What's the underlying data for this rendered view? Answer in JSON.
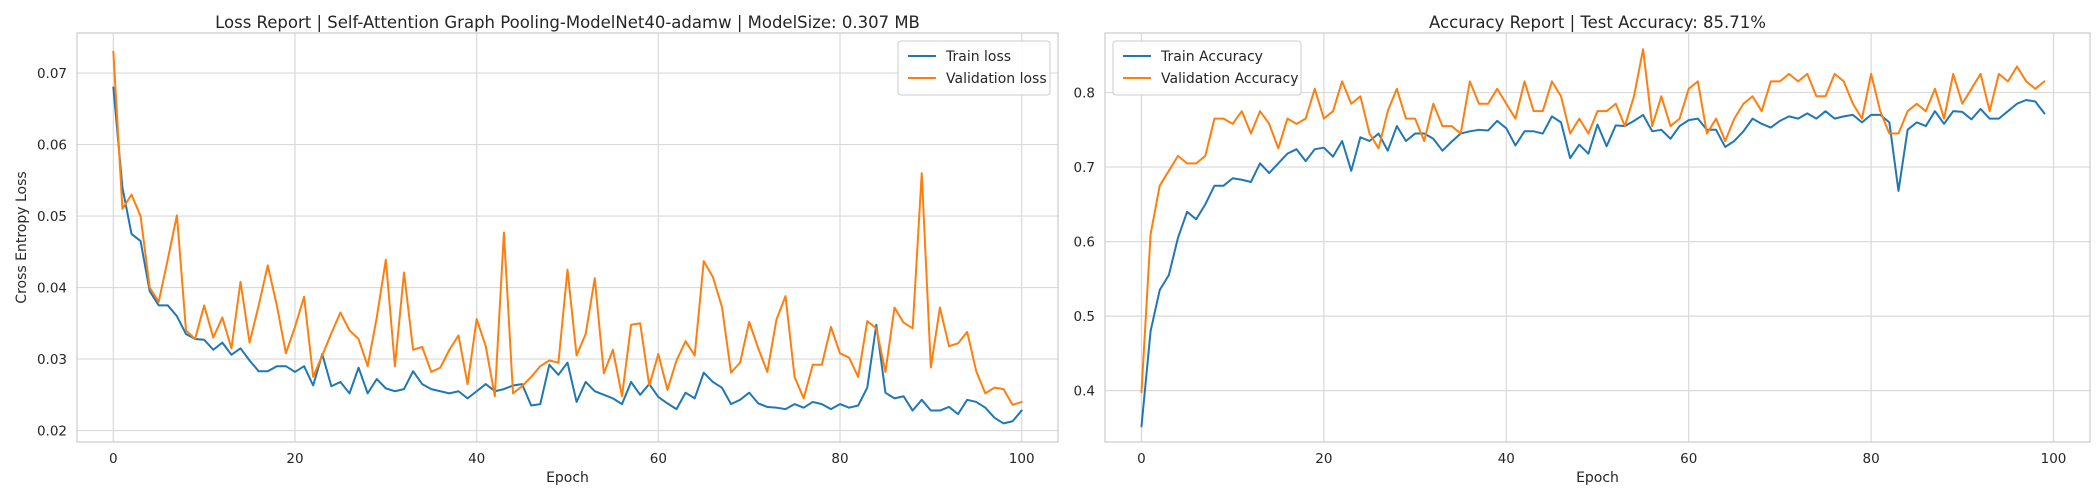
{
  "chart_data": [
    {
      "type": "line",
      "title": "Loss Report | Self-Attention Graph Pooling-ModelNet40-adamw | ModelSize: 0.307 MB",
      "xlabel": "Epoch",
      "ylabel": "Cross Entropy Loss",
      "xlim": [
        -4,
        104
      ],
      "ylim": [
        0.0184,
        0.0756
      ],
      "xticks": [
        0,
        20,
        40,
        60,
        80,
        100
      ],
      "yticks": [
        0.02,
        0.03,
        0.04,
        0.05,
        0.06,
        0.07
      ],
      "ytick_decimals": 2,
      "grid": true,
      "legend_position": "top-right",
      "series": [
        {
          "name": "Train loss",
          "color": "#1f77b4",
          "values": [
            0.068,
            0.054,
            0.0475,
            0.0465,
            0.0395,
            0.0375,
            0.0375,
            0.036,
            0.0335,
            0.0328,
            0.0327,
            0.0313,
            0.0323,
            0.0306,
            0.0315,
            0.0298,
            0.0283,
            0.0283,
            0.029,
            0.029,
            0.0282,
            0.029,
            0.0263,
            0.0307,
            0.0262,
            0.0268,
            0.0252,
            0.0288,
            0.0252,
            0.0272,
            0.0259,
            0.0255,
            0.0258,
            0.0283,
            0.0265,
            0.0258,
            0.0255,
            0.0252,
            0.0255,
            0.0245,
            0.0255,
            0.0265,
            0.0255,
            0.0258,
            0.0263,
            0.0265,
            0.0235,
            0.0237,
            0.0292,
            0.0278,
            0.0295,
            0.024,
            0.0268,
            0.0255,
            0.025,
            0.0245,
            0.0237,
            0.0268,
            0.025,
            0.0265,
            0.0247,
            0.0238,
            0.023,
            0.0253,
            0.0245,
            0.0281,
            0.0268,
            0.026,
            0.0237,
            0.0243,
            0.0253,
            0.0238,
            0.0233,
            0.0232,
            0.023,
            0.0237,
            0.0232,
            0.024,
            0.0237,
            0.023,
            0.0237,
            0.0232,
            0.0235,
            0.026,
            0.0348,
            0.0253,
            0.0245,
            0.0248,
            0.0228,
            0.0243,
            0.0228,
            0.0228,
            0.0233,
            0.0223,
            0.0243,
            0.024,
            0.0232,
            0.0218,
            0.021,
            0.0213,
            0.0228
          ]
        },
        {
          "name": "Validation loss",
          "color": "#ff7f0e",
          "values": [
            0.073,
            0.051,
            0.053,
            0.05,
            0.04,
            0.038,
            0.044,
            0.0501,
            0.034,
            0.0328,
            0.0375,
            0.033,
            0.0358,
            0.0315,
            0.0408,
            0.0323,
            0.0375,
            0.0431,
            0.0375,
            0.0308,
            0.0345,
            0.0387,
            0.0275,
            0.0305,
            0.0336,
            0.0365,
            0.034,
            0.0328,
            0.029,
            0.0358,
            0.0439,
            0.029,
            0.0421,
            0.0313,
            0.0317,
            0.0282,
            0.0288,
            0.0313,
            0.0333,
            0.0265,
            0.0356,
            0.0318,
            0.0248,
            0.0477,
            0.0252,
            0.0262,
            0.0275,
            0.029,
            0.0298,
            0.0295,
            0.0425,
            0.0305,
            0.0335,
            0.0413,
            0.028,
            0.0313,
            0.0248,
            0.0348,
            0.035,
            0.0263,
            0.0307,
            0.0257,
            0.0298,
            0.0325,
            0.0305,
            0.0437,
            0.0415,
            0.0373,
            0.0281,
            0.0295,
            0.0352,
            0.0315,
            0.0282,
            0.0355,
            0.0388,
            0.0275,
            0.0245,
            0.0292,
            0.0292,
            0.0345,
            0.0308,
            0.0302,
            0.0275,
            0.0353,
            0.0343,
            0.0282,
            0.0372,
            0.0351,
            0.0343,
            0.056,
            0.0288,
            0.0372,
            0.0318,
            0.0322,
            0.0338,
            0.0283,
            0.0252,
            0.026,
            0.0258,
            0.0236,
            0.024
          ]
        }
      ]
    },
    {
      "type": "line",
      "title": "Accuracy Report | Test Accuracy: 85.71%",
      "xlabel": "Epoch",
      "ylabel": "",
      "xlim": [
        -4,
        104
      ],
      "ylim": [
        0.3311,
        0.8799
      ],
      "xticks": [
        0,
        20,
        40,
        60,
        80,
        100
      ],
      "yticks": [
        0.4,
        0.5,
        0.6,
        0.7,
        0.8
      ],
      "ytick_decimals": 1,
      "grid": true,
      "legend_position": "top-left",
      "series": [
        {
          "name": "Train Accuracy",
          "color": "#1f77b4",
          "values": [
            0.352,
            0.48,
            0.535,
            0.555,
            0.605,
            0.64,
            0.63,
            0.65,
            0.675,
            0.675,
            0.685,
            0.683,
            0.68,
            0.705,
            0.692,
            0.705,
            0.718,
            0.724,
            0.708,
            0.724,
            0.726,
            0.714,
            0.735,
            0.695,
            0.74,
            0.735,
            0.745,
            0.722,
            0.755,
            0.735,
            0.745,
            0.745,
            0.738,
            0.722,
            0.734,
            0.745,
            0.748,
            0.75,
            0.749,
            0.762,
            0.752,
            0.729,
            0.748,
            0.748,
            0.745,
            0.768,
            0.76,
            0.712,
            0.73,
            0.718,
            0.757,
            0.728,
            0.756,
            0.755,
            0.762,
            0.77,
            0.748,
            0.75,
            0.738,
            0.755,
            0.763,
            0.765,
            0.75,
            0.75,
            0.727,
            0.735,
            0.748,
            0.765,
            0.758,
            0.753,
            0.762,
            0.768,
            0.765,
            0.772,
            0.765,
            0.775,
            0.765,
            0.768,
            0.77,
            0.76,
            0.77,
            0.77,
            0.76,
            0.668,
            0.75,
            0.76,
            0.755,
            0.775,
            0.758,
            0.775,
            0.774,
            0.764,
            0.778,
            0.765,
            0.765,
            0.775,
            0.785,
            0.79,
            0.788,
            0.772
          ]
        },
        {
          "name": "Validation Accuracy",
          "color": "#ff7f0e",
          "values": [
            0.398,
            0.61,
            0.675,
            0.695,
            0.715,
            0.705,
            0.705,
            0.715,
            0.765,
            0.765,
            0.758,
            0.775,
            0.745,
            0.775,
            0.758,
            0.725,
            0.765,
            0.758,
            0.765,
            0.805,
            0.765,
            0.775,
            0.815,
            0.785,
            0.795,
            0.745,
            0.725,
            0.775,
            0.805,
            0.765,
            0.765,
            0.735,
            0.785,
            0.755,
            0.755,
            0.745,
            0.815,
            0.785,
            0.785,
            0.805,
            0.785,
            0.765,
            0.815,
            0.775,
            0.775,
            0.815,
            0.795,
            0.745,
            0.765,
            0.745,
            0.775,
            0.775,
            0.785,
            0.755,
            0.795,
            0.858,
            0.755,
            0.795,
            0.755,
            0.765,
            0.805,
            0.815,
            0.745,
            0.765,
            0.735,
            0.765,
            0.785,
            0.795,
            0.775,
            0.815,
            0.815,
            0.825,
            0.815,
            0.825,
            0.795,
            0.795,
            0.825,
            0.815,
            0.785,
            0.765,
            0.825,
            0.775,
            0.745,
            0.745,
            0.775,
            0.785,
            0.775,
            0.805,
            0.765,
            0.825,
            0.785,
            0.805,
            0.825,
            0.775,
            0.825,
            0.815,
            0.835,
            0.815,
            0.805,
            0.815
          ]
        }
      ]
    }
  ]
}
